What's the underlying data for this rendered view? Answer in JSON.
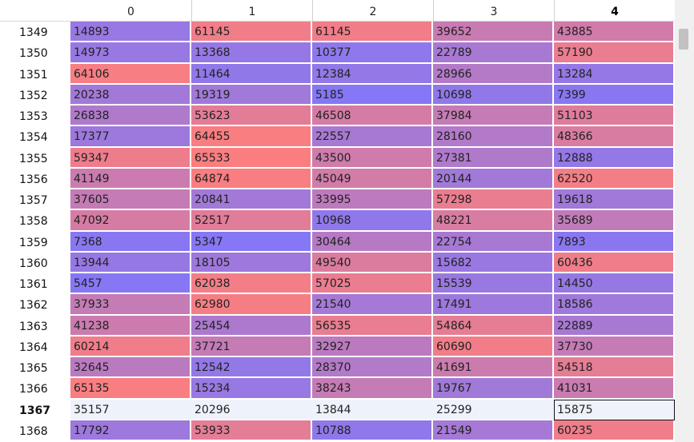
{
  "header": {
    "columns": [
      "0",
      "1",
      "2",
      "3",
      "4"
    ],
    "current_column": 4
  },
  "colors": {
    "low": "#8577f5",
    "high": "#fa7e80",
    "selected_row_bg": "#eef3fb",
    "value_min": 5185,
    "value_max": 65533
  },
  "rows": [
    {
      "index": "1349",
      "values": [
        "14893",
        "61145",
        "61145",
        "39652",
        "43885"
      ]
    },
    {
      "index": "1350",
      "values": [
        "14973",
        "13368",
        "10377",
        "22789",
        "57190"
      ]
    },
    {
      "index": "1351",
      "values": [
        "64106",
        "11464",
        "12384",
        "28966",
        "13284"
      ]
    },
    {
      "index": "1352",
      "values": [
        "20238",
        "19319",
        "5185",
        "10698",
        "7399"
      ]
    },
    {
      "index": "1353",
      "values": [
        "26838",
        "53623",
        "46508",
        "37984",
        "51103"
      ]
    },
    {
      "index": "1354",
      "values": [
        "17377",
        "64455",
        "22557",
        "28160",
        "48366"
      ]
    },
    {
      "index": "1355",
      "values": [
        "59347",
        "65533",
        "43500",
        "27381",
        "12888"
      ]
    },
    {
      "index": "1356",
      "values": [
        "41149",
        "64874",
        "45049",
        "20144",
        "62520"
      ]
    },
    {
      "index": "1357",
      "values": [
        "37605",
        "20841",
        "33995",
        "57298",
        "19618"
      ]
    },
    {
      "index": "1358",
      "values": [
        "47092",
        "52517",
        "10968",
        "48221",
        "35689"
      ]
    },
    {
      "index": "1359",
      "values": [
        "7368",
        "5347",
        "30464",
        "22754",
        "7893"
      ]
    },
    {
      "index": "1360",
      "values": [
        "13944",
        "18105",
        "49540",
        "15682",
        "60436"
      ]
    },
    {
      "index": "1361",
      "values": [
        "5457",
        "62038",
        "57025",
        "15539",
        "14450"
      ]
    },
    {
      "index": "1362",
      "values": [
        "37933",
        "62980",
        "21540",
        "17491",
        "18586"
      ]
    },
    {
      "index": "1363",
      "values": [
        "41238",
        "25454",
        "56535",
        "54864",
        "22889"
      ]
    },
    {
      "index": "1364",
      "values": [
        "60214",
        "37721",
        "32927",
        "60690",
        "37730"
      ]
    },
    {
      "index": "1365",
      "values": [
        "32645",
        "12542",
        "28370",
        "41691",
        "54518"
      ]
    },
    {
      "index": "1366",
      "values": [
        "65135",
        "15234",
        "38243",
        "19767",
        "41031"
      ]
    },
    {
      "index": "1367",
      "values": [
        "35157",
        "20296",
        "13844",
        "25299",
        "15875"
      ],
      "selected": true,
      "focus_column": 4
    },
    {
      "index": "1368",
      "values": [
        "17792",
        "53933",
        "10788",
        "21549",
        "60235"
      ]
    }
  ]
}
